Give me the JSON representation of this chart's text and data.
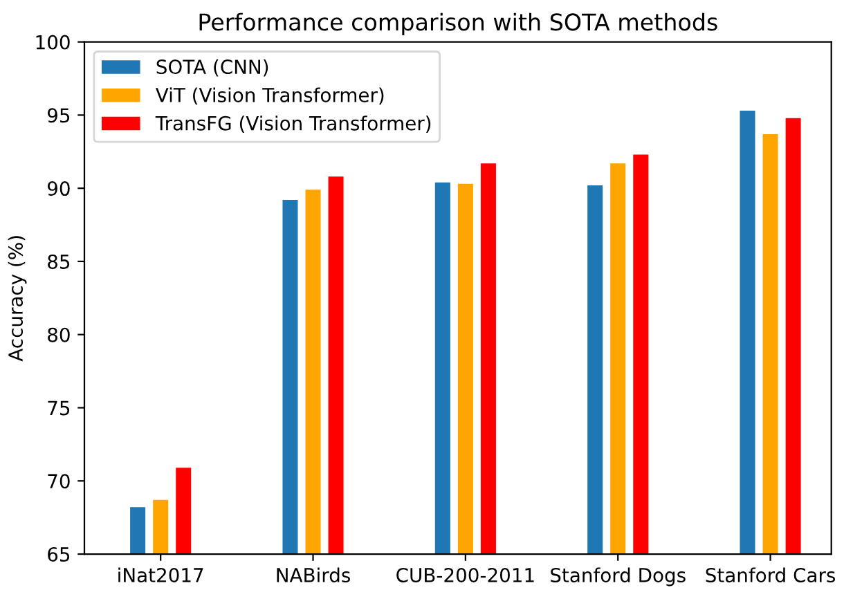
{
  "chart_data": {
    "type": "bar",
    "title": "Performance comparison with SOTA methods",
    "ylabel": "Accuracy (%)",
    "categories": [
      "iNat2017",
      "NABirds",
      "CUB-200-2011",
      "Stanford Dogs",
      "Stanford Cars"
    ],
    "series": [
      {
        "name": "SOTA (CNN)",
        "color": "#1f77b4",
        "values": [
          68.2,
          89.2,
          90.4,
          90.2,
          95.3
        ]
      },
      {
        "name": "ViT (Vision Transformer)",
        "color": "#ffa500",
        "values": [
          68.7,
          89.9,
          90.3,
          91.7,
          93.7
        ]
      },
      {
        "name": "TransFG (Vision Transformer)",
        "color": "#ff0000",
        "values": [
          70.9,
          90.8,
          91.7,
          92.3,
          94.8
        ]
      }
    ],
    "ylim": [
      65,
      100
    ],
    "yticks": [
      65,
      70,
      75,
      80,
      85,
      90,
      95,
      100
    ],
    "legend": "top left"
  }
}
